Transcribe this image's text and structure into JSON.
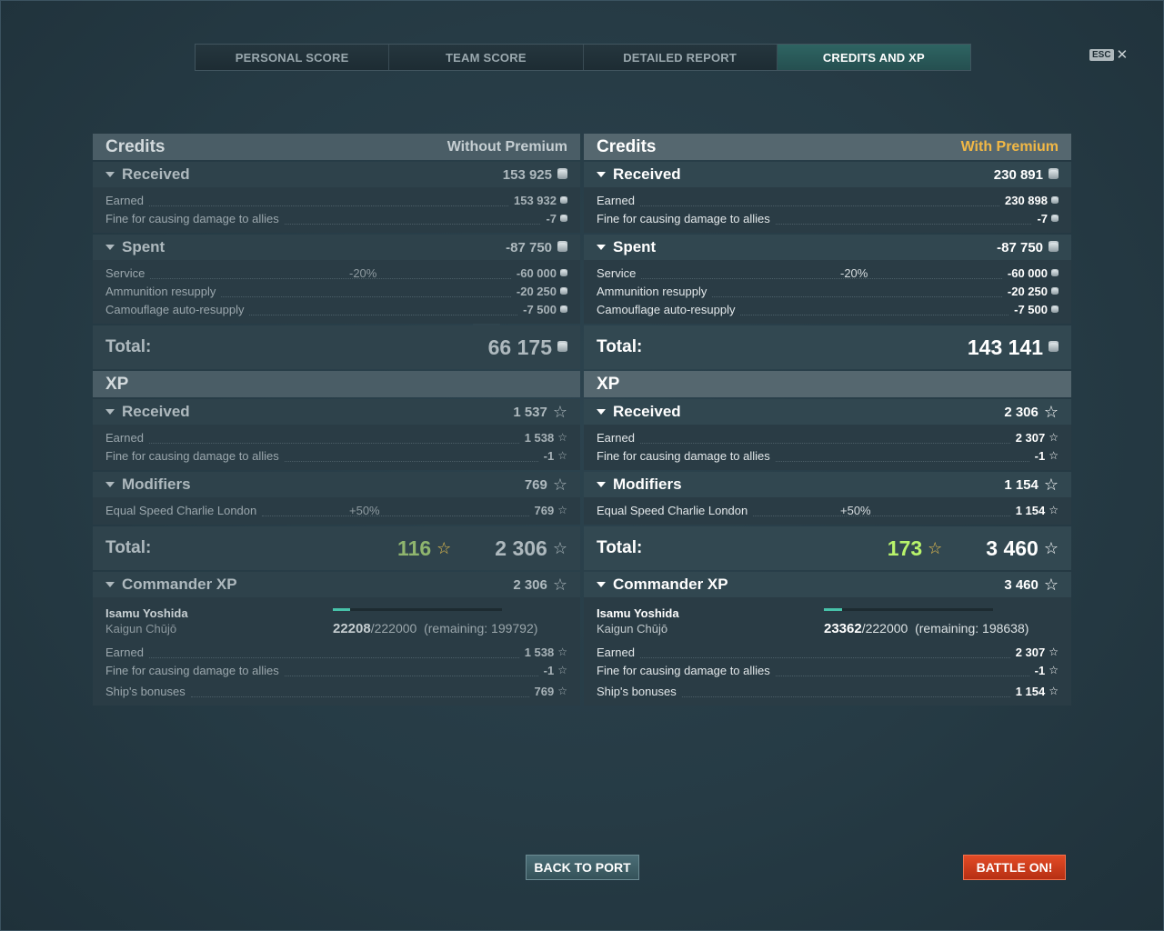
{
  "tabs": [
    {
      "label": "PERSONAL SCORE",
      "active": false
    },
    {
      "label": "TEAM SCORE",
      "active": false
    },
    {
      "label": "DETAILED REPORT",
      "active": false
    },
    {
      "label": "CREDITS AND XP",
      "active": true
    }
  ],
  "esc": {
    "key": "ESC",
    "close": "✕"
  },
  "left": {
    "credits_header": "Credits",
    "variant": "Without Premium",
    "received": {
      "label": "Received",
      "value": "153 925",
      "rows": [
        {
          "name": "Earned",
          "value": "153 932"
        },
        {
          "name": "Fine for causing damage to allies",
          "value": "-7"
        }
      ]
    },
    "spent": {
      "label": "Spent",
      "value": "-87 750",
      "rows": [
        {
          "name": "Service",
          "pct": "-20%",
          "value": "-60 000"
        },
        {
          "name": "Ammunition resupply",
          "value": "-20 250"
        },
        {
          "name": "Camouflage auto-resupply",
          "value": "-7 500"
        }
      ]
    },
    "credits_total": {
      "label": "Total:",
      "value": "66 175"
    },
    "xp_header": "XP",
    "xp_received": {
      "label": "Received",
      "value": "1 537",
      "rows": [
        {
          "name": "Earned",
          "value": "1 538"
        },
        {
          "name": "Fine for causing damage to allies",
          "value": "-1"
        }
      ]
    },
    "modifiers": {
      "label": "Modifiers",
      "value": "769",
      "rows": [
        {
          "name": "Equal Speed Charlie London",
          "pct": "+50%",
          "value": "769"
        }
      ]
    },
    "xp_total": {
      "label": "Total:",
      "free": "116",
      "value": "2 306"
    },
    "commander": {
      "label": "Commander XP",
      "value": "2 306",
      "name": "Isamu Yoshida",
      "rank": "Kaigun Chūjō",
      "current": "22208",
      "max": "/222000",
      "remaining": "(remaining: 199792)",
      "progress": 0.1,
      "rows": [
        {
          "name": "Earned",
          "value": "1 538"
        },
        {
          "name": "Fine for causing damage to allies",
          "value": "-1"
        },
        {
          "name": "Ship's bonuses",
          "value": "769"
        }
      ]
    }
  },
  "right": {
    "credits_header": "Credits",
    "variant": "With Premium",
    "received": {
      "label": "Received",
      "value": "230 891",
      "rows": [
        {
          "name": "Earned",
          "value": "230 898"
        },
        {
          "name": "Fine for causing damage to allies",
          "value": "-7"
        }
      ]
    },
    "spent": {
      "label": "Spent",
      "value": "-87 750",
      "rows": [
        {
          "name": "Service",
          "pct": "-20%",
          "value": "-60 000"
        },
        {
          "name": "Ammunition resupply",
          "value": "-20 250"
        },
        {
          "name": "Camouflage auto-resupply",
          "value": "-7 500"
        }
      ]
    },
    "credits_total": {
      "label": "Total:",
      "value": "143 141"
    },
    "xp_header": "XP",
    "xp_received": {
      "label": "Received",
      "value": "2 306",
      "rows": [
        {
          "name": "Earned",
          "value": "2 307"
        },
        {
          "name": "Fine for causing damage to allies",
          "value": "-1"
        }
      ]
    },
    "modifiers": {
      "label": "Modifiers",
      "value": "1 154",
      "rows": [
        {
          "name": "Equal Speed Charlie London",
          "pct": "+50%",
          "value": "1 154"
        }
      ]
    },
    "xp_total": {
      "label": "Total:",
      "free": "173",
      "value": "3 460"
    },
    "commander": {
      "label": "Commander XP",
      "value": "3 460",
      "name": "Isamu Yoshida",
      "rank": "Kaigun Chūjō",
      "current": "23362",
      "max": "/222000",
      "remaining": "(remaining: 198638)",
      "progress": 0.105,
      "rows": [
        {
          "name": "Earned",
          "value": "2 307"
        },
        {
          "name": "Fine for causing damage to allies",
          "value": "-1"
        },
        {
          "name": "Ship's bonuses",
          "value": "1 154"
        }
      ]
    }
  },
  "buttons": {
    "back": "BACK TO PORT",
    "battle": "BATTLE ON!"
  },
  "icons": {
    "credits": "credits-coin-icon",
    "xp": "xp-star-icon",
    "free_xp": "free-xp-gold-star-icon"
  },
  "colors": {
    "active_tab": "#2e6462",
    "premium": "#f2b845",
    "free_xp": "#b8f36b",
    "battle_button": "#d23d1c",
    "progress": "#47c2a9"
  }
}
